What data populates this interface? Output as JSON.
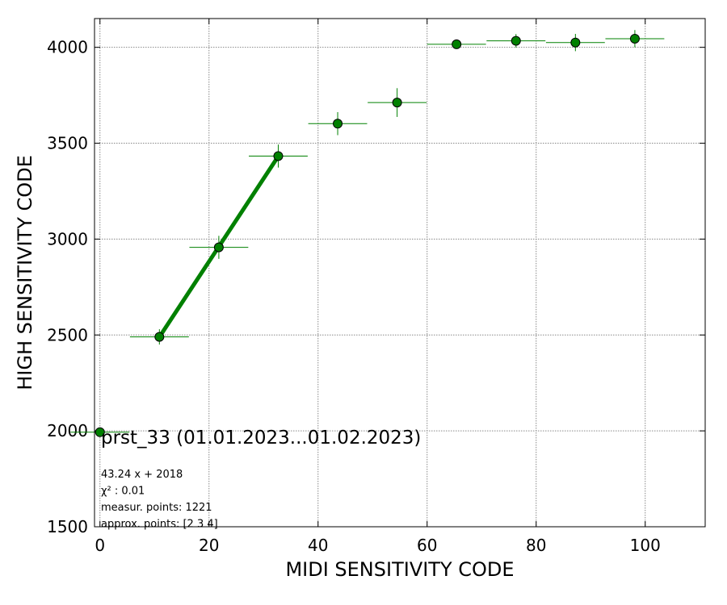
{
  "chart_data": {
    "type": "scatter",
    "title": "prst_33 (01.01.2023...01.02.2023)",
    "xlabel": "MIDI SENSITIVITY CODE",
    "ylabel": "HIGH SENSITIVITY CODE",
    "xlim": [
      -1,
      111
    ],
    "ylim": [
      1500,
      4150
    ],
    "xticks": [
      0,
      20,
      40,
      60,
      80,
      100
    ],
    "yticks": [
      1500,
      2000,
      2500,
      3000,
      3500,
      4000
    ],
    "grid": true,
    "points": [
      {
        "x": 0,
        "y": 1993,
        "xerr": 5.4,
        "yerr": 10
      },
      {
        "x": 10.9,
        "y": 2490,
        "xerr": 5.4,
        "yerr": 40
      },
      {
        "x": 21.8,
        "y": 2957,
        "xerr": 5.4,
        "yerr": 60
      },
      {
        "x": 32.7,
        "y": 3433,
        "xerr": 5.4,
        "yerr": 60
      },
      {
        "x": 43.6,
        "y": 3602,
        "xerr": 5.4,
        "yerr": 60
      },
      {
        "x": 54.5,
        "y": 3712,
        "xerr": 5.4,
        "yerr": 75
      },
      {
        "x": 65.4,
        "y": 4016,
        "xerr": 5.4,
        "yerr": 15
      },
      {
        "x": 76.3,
        "y": 4034,
        "xerr": 5.4,
        "yerr": 35
      },
      {
        "x": 87.2,
        "y": 4025,
        "xerr": 5.4,
        "yerr": 45
      },
      {
        "x": 98.1,
        "y": 4045,
        "xerr": 5.4,
        "yerr": 45
      }
    ],
    "fit": {
      "slope": 43.24,
      "intercept": 2018,
      "x_start": 10.9,
      "x_end": 32.7
    },
    "annotations": [
      "43.24 x + 2018",
      "χ² : 0.01",
      "measur. points: 1221",
      "approx. points: [2 3 4]"
    ],
    "colors": {
      "marker": "#008000",
      "errorbar": "#008000",
      "fit": "#008000",
      "grid": "#888888"
    }
  }
}
